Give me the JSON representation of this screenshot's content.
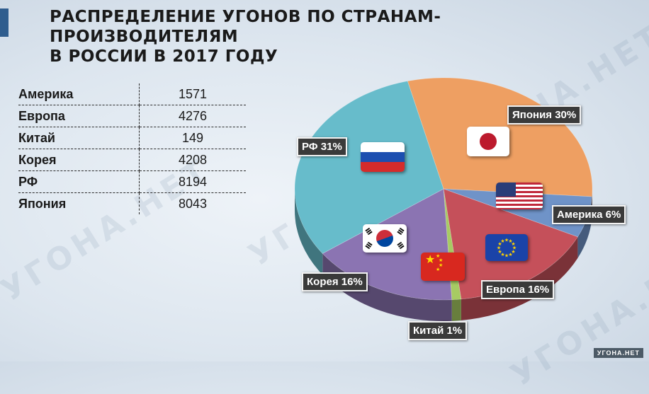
{
  "title": {
    "line1": "РАСПРЕДЕЛЕНИЕ УГОНОВ ПО СТРАНАМ-ПРОИЗВОДИТЕЛЯМ",
    "line2": "В РОССИИ В 2017 ГОДУ"
  },
  "watermark": "УГОНА.НЕТ",
  "source_badge": "УГОНА.НЕТ",
  "table": [
    {
      "name": "Америка",
      "value": "1571"
    },
    {
      "name": "Европа",
      "value": "4276"
    },
    {
      "name": "Китай",
      "value": "149"
    },
    {
      "name": "Корея",
      "value": "4208"
    },
    {
      "name": "РФ",
      "value": "8194"
    },
    {
      "name": "Япония",
      "value": "8043"
    }
  ],
  "chart_data": {
    "type": "pie",
    "slices": [
      {
        "key": "japan",
        "label": "Япония 30%",
        "value": 30,
        "color": "#ee9f62"
      },
      {
        "key": "america",
        "label": "Америка 6%",
        "value": 6,
        "color": "#6f93c8"
      },
      {
        "key": "europe",
        "label": "Европа 16%",
        "value": 16,
        "color": "#c5505a"
      },
      {
        "key": "china",
        "label": "Китай 1%",
        "value": 1,
        "color": "#a7cb63"
      },
      {
        "key": "korea",
        "label": "Корея 16%",
        "value": 16,
        "color": "#8b74b2"
      },
      {
        "key": "rf",
        "label": "РФ 31%",
        "value": 31,
        "color": "#67bccb"
      }
    ]
  },
  "flags": {
    "russia": "flag-russia-icon",
    "japan": "flag-japan-icon",
    "usa": "flag-usa-icon",
    "eu": "flag-eu-icon",
    "china": "flag-china-icon",
    "korea": "flag-south-korea-icon"
  }
}
